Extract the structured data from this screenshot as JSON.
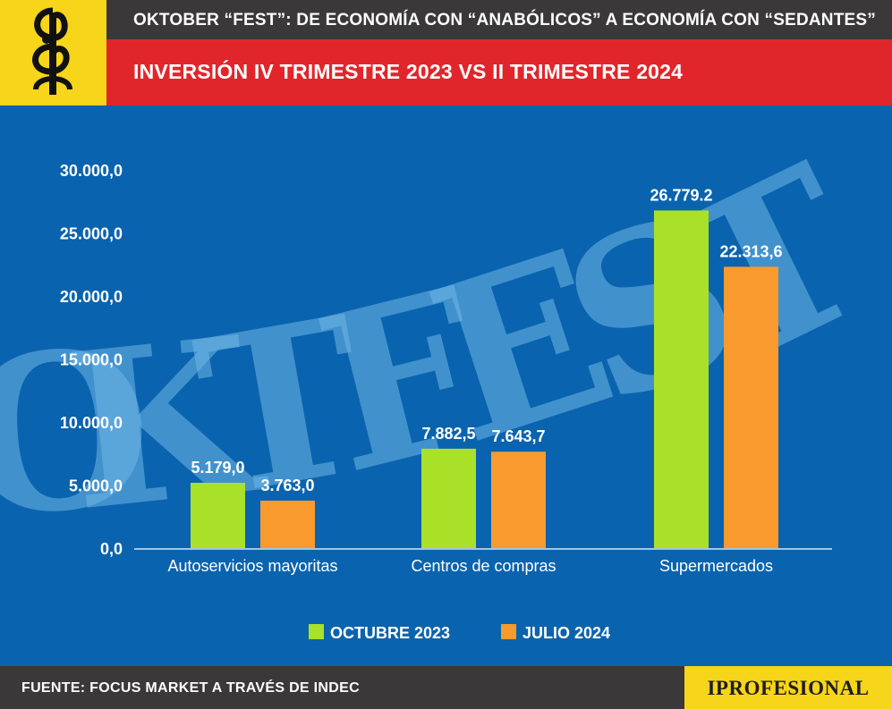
{
  "header": {
    "top_title": "OKTOBER “FEST”: DE ECONOMÍA CON “ANABÓLICOS” A ECONOMÍA CON “SEDANTES”",
    "subtitle": "INVERSIÓN IV TRIMESTRE 2023 VS II TRIMESTRE 2024"
  },
  "watermark": "OKTFEST",
  "chart_data": {
    "type": "bar",
    "categories": [
      "Autoservicios mayoritas",
      "Centros de compras",
      "Supermercados"
    ],
    "series": [
      {
        "name": "OCTUBRE 2023",
        "color": "#a9e128",
        "values": [
          5179.0,
          7882.5,
          26779.2
        ],
        "labels": [
          "5.179,0",
          "7.882,5",
          "26.779.2"
        ]
      },
      {
        "name": "JULIO 2024",
        "color": "#f99a2f",
        "values": [
          3763.0,
          7643.7,
          22313.6
        ],
        "labels": [
          "3.763,0",
          "7.643,7",
          "22.313,6"
        ]
      }
    ],
    "yticks": [
      0,
      5000,
      10000,
      15000,
      20000,
      25000,
      30000
    ],
    "ytick_labels": [
      "0,0",
      "5.000,0",
      "10.000,0",
      "15.000,0",
      "20.000,0",
      "25.000,0",
      "30.000,0"
    ],
    "ylim": [
      0,
      30000
    ],
    "grid": false,
    "legend_position": "bottom-center"
  },
  "footer": {
    "source": "FUENTE: FOCUS MARKET A TRAVÉS DE INDEC",
    "brand": "IPROFESIONAL"
  }
}
